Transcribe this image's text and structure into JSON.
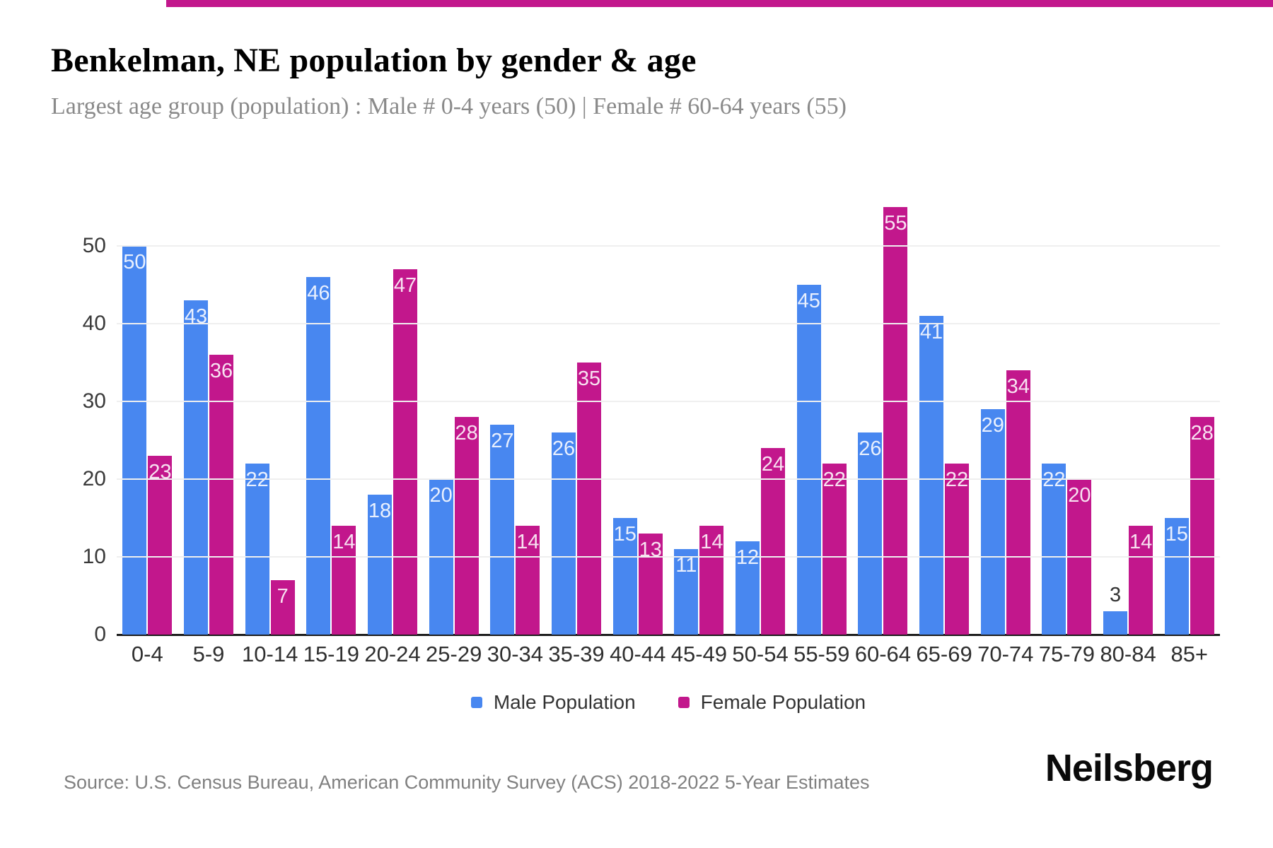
{
  "page": {
    "accent_color": "#C2178C"
  },
  "header": {
    "title": "Benkelman, NE population by gender & age",
    "subtitle": "Largest age group (population) : Male # 0-4 years (50) | Female # 60-64 years (55)"
  },
  "chart_data": {
    "type": "bar",
    "title": "Benkelman, NE population by gender & age",
    "subtitle": "Largest age group (population) : Male # 0-4 years (50) | Female # 60-64 years (55)",
    "categories": [
      "0-4",
      "5-9",
      "10-14",
      "15-19",
      "20-24",
      "25-29",
      "30-34",
      "35-39",
      "40-44",
      "45-49",
      "50-54",
      "55-59",
      "60-64",
      "65-69",
      "70-74",
      "75-79",
      "80-84",
      "85+"
    ],
    "series": [
      {
        "name": "Male Population",
        "color": "#4887F0",
        "values": [
          50,
          43,
          22,
          46,
          18,
          20,
          27,
          26,
          15,
          11,
          12,
          45,
          26,
          41,
          29,
          22,
          3,
          15
        ]
      },
      {
        "name": "Female Population",
        "color": "#C2178C",
        "values": [
          23,
          36,
          7,
          14,
          47,
          28,
          14,
          35,
          13,
          14,
          24,
          22,
          55,
          22,
          34,
          20,
          14,
          28
        ]
      }
    ],
    "ylim": [
      0,
      55
    ],
    "yticks": [
      0,
      10,
      20,
      30,
      40,
      50
    ],
    "grid": "horizontal",
    "legend_position": "bottom",
    "value_labels": "inside-top, white; shown above bar in dark gray when bar too short",
    "colors": {
      "gridline": "#efefef",
      "axis_line": "#1c1c1c",
      "tick_text": "#3a3a3a",
      "category_text": "#2f2f2f"
    }
  },
  "footer": {
    "source": "Source: U.S. Census Bureau, American Community Survey (ACS) 2018-2022 5-Year Estimates",
    "brand": "Neilsberg"
  }
}
